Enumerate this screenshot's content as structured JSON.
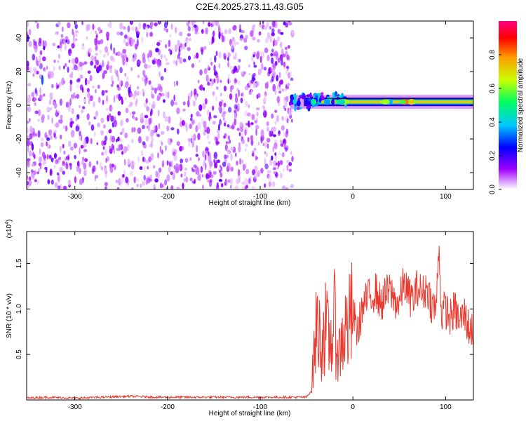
{
  "title": "C2E4.2025.273.11.43.G05",
  "chart_data": [
    {
      "type": "heatmap",
      "xlabel": "Height of straight line (km)",
      "ylabel": "Frequency (Hz)",
      "xlim": [
        -352,
        130
      ],
      "ylim": [
        -50,
        50
      ],
      "xticks": [
        -300,
        -200,
        -100,
        0,
        100
      ],
      "xtick_labels": [
        "-300",
        "-200",
        "-100",
        "0",
        "100"
      ],
      "yticks": [
        -40,
        -20,
        0,
        20,
        40
      ],
      "ytick_labels": [
        "-40",
        "-20",
        "0",
        "20",
        "40"
      ],
      "colorbar": {
        "label": "Normalized spectral amplitude",
        "range": [
          0,
          1
        ],
        "ticks": [
          0.0,
          0.2,
          0.4,
          0.6,
          0.8
        ],
        "tick_labels": [
          "0.0",
          "0.2",
          "0.4",
          "0.6",
          "0.8"
        ],
        "colormap": [
          "#ffffff",
          "#a000ff",
          "#0000ff",
          "#00c8ff",
          "#00ff60",
          "#c8ff00",
          "#ffa000",
          "#ff0000",
          "#ff0080"
        ]
      },
      "noise_region": {
        "x_from": -352,
        "x_to": -65,
        "level": 0.12
      },
      "signal_ridge": {
        "x_from": -68,
        "x_to": 130,
        "frequency_hz": 2,
        "level": 0.7
      },
      "features": [
        {
          "x": -335,
          "y": 15,
          "level": 0.3
        }
      ]
    },
    {
      "type": "line",
      "xlabel": "Height of straight line (km)",
      "ylabel": "SNR (10 * v/v)",
      "y_scale_label": "(x10",
      "y_scale_exponent": "4",
      "y_scale_suffix": ")",
      "xlim": [
        -352,
        130
      ],
      "ylim": [
        0,
        1.85
      ],
      "xticks": [
        -300,
        -200,
        -100,
        0,
        100
      ],
      "xtick_labels": [
        "-300",
        "-200",
        "-100",
        "0",
        "100"
      ],
      "yticks": [
        0.5,
        1.0,
        1.5
      ],
      "ytick_labels": [
        "0.5",
        "1.0",
        "1.5"
      ],
      "line_color": "#e8392e",
      "series": [
        {
          "x": [
            -352,
            -330,
            -300,
            -270,
            -240,
            -210,
            -180,
            -150,
            -120,
            -100,
            -80,
            -60,
            -50,
            -45,
            -42,
            -38,
            -35,
            -30,
            -25,
            -20,
            -15,
            -10,
            -5,
            0,
            5,
            10,
            15,
            20,
            25,
            30,
            35,
            40,
            45,
            50,
            55,
            60,
            65,
            70,
            75,
            80,
            85,
            90,
            93,
            95,
            100,
            105,
            110,
            115,
            120,
            125,
            130
          ],
          "values": [
            0.02,
            0.03,
            0.02,
            0.03,
            0.04,
            0.03,
            0.03,
            0.03,
            0.03,
            0.03,
            0.03,
            0.03,
            0.03,
            0.1,
            0.5,
            0.9,
            0.6,
            0.8,
            0.6,
            0.85,
            0.5,
            0.75,
            0.8,
            0.95,
            0.75,
            1.0,
            1.1,
            1.15,
            1.2,
            1.05,
            1.15,
            1.2,
            1.1,
            1.05,
            1.3,
            1.15,
            1.1,
            1.25,
            1.15,
            1.25,
            1.05,
            1.0,
            1.8,
            0.95,
            1.0,
            0.9,
            1.0,
            0.85,
            0.95,
            0.8,
            0.75
          ]
        }
      ]
    }
  ]
}
